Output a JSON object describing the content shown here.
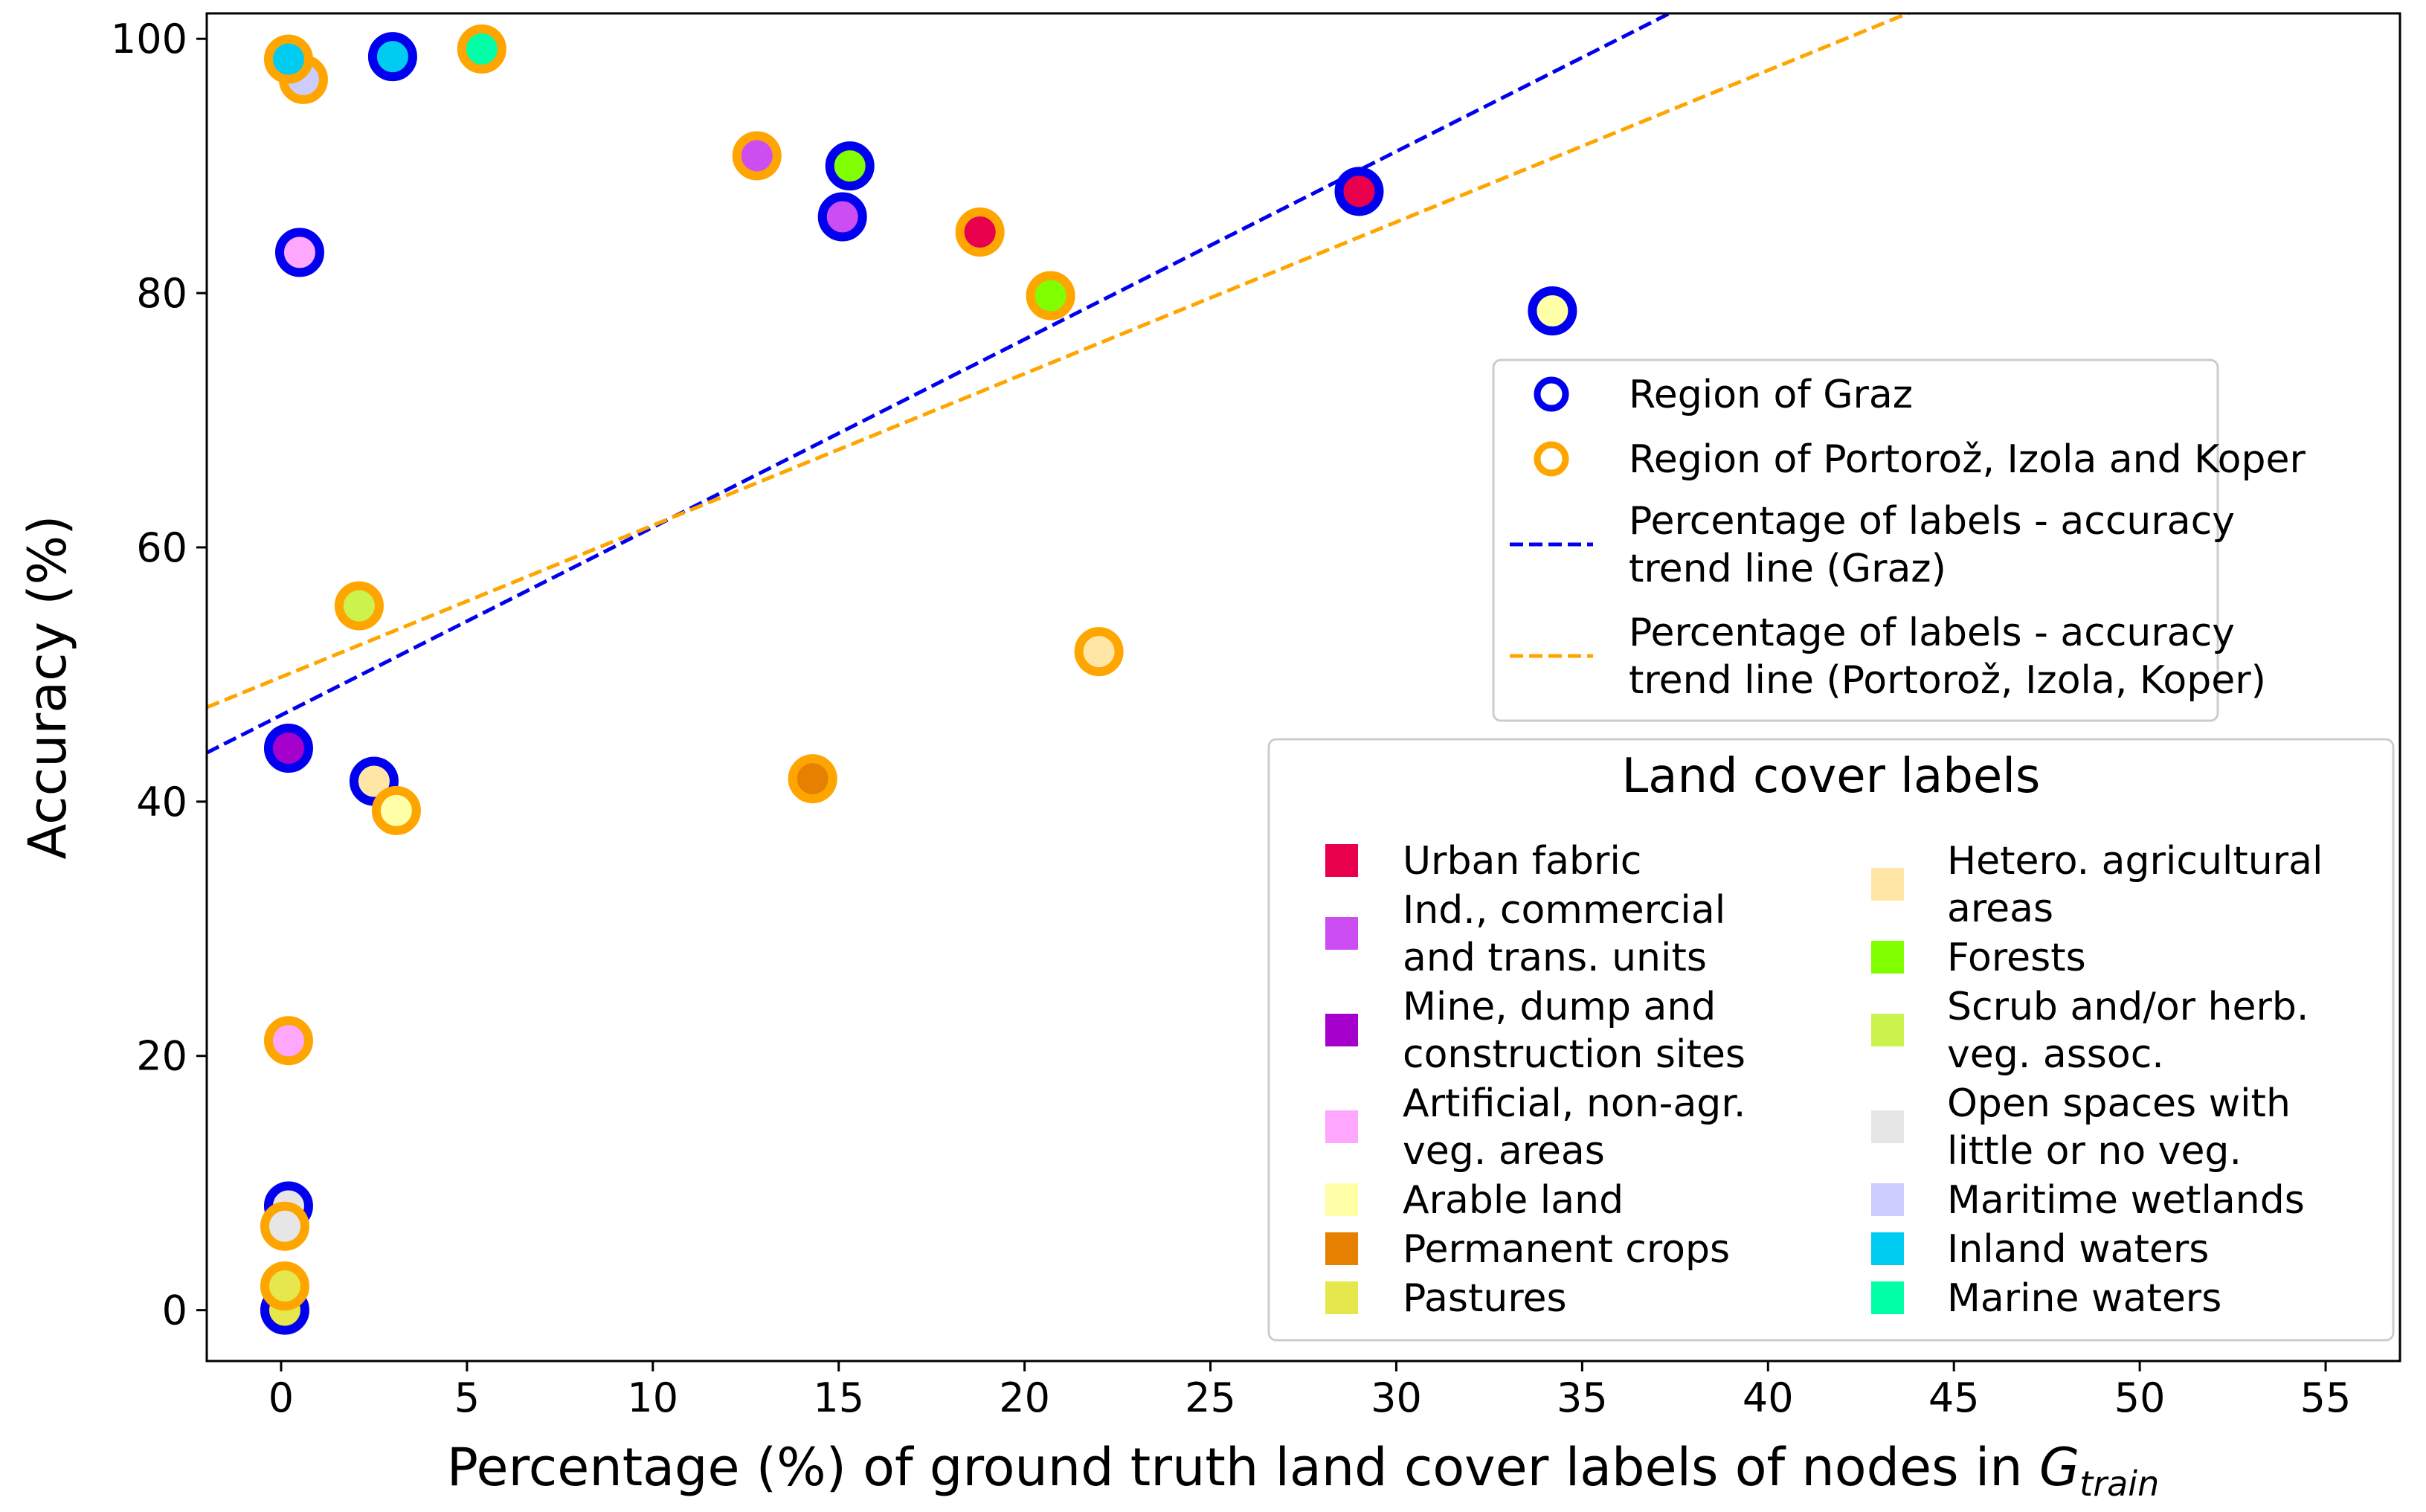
{
  "chart_data": {
    "type": "scatter",
    "title": "",
    "xlabel": "Percentage (%) of ground truth land cover labels of nodes in ",
    "xlabel_math": "G",
    "xlabel_sub": "train",
    "ylabel": "Accuracy (%)",
    "xlim": [
      -2,
      57
    ],
    "ylim": [
      -4,
      102
    ],
    "xticks": [
      0,
      5,
      10,
      15,
      20,
      25,
      30,
      35,
      40,
      45,
      50,
      55
    ],
    "yticks": [
      0,
      20,
      40,
      60,
      80,
      100
    ],
    "grid": false,
    "region_colors": {
      "graz": "#0000ee",
      "pik": "#ffa500"
    },
    "label_colors": {
      "urban": "#e8004c",
      "industrial": "#cc4df2",
      "mine": "#a600cc",
      "artificial": "#ffa6ff",
      "arable": "#ffffa8",
      "permanent": "#e68000",
      "pastures": "#e6e64d",
      "hetero": "#ffe6a6",
      "forests": "#80ff00",
      "scrub": "#ccf24d",
      "open": "#e6e6e6",
      "wetlands": "#ccccff",
      "inland": "#00ccf2",
      "marine": "#00ffa6"
    },
    "series": [
      {
        "name": "Region of Graz",
        "region": "graz",
        "points": [
          {
            "x": 29.0,
            "y": 88.0,
            "label": "urban"
          },
          {
            "x": 15.1,
            "y": 86.0,
            "label": "industrial"
          },
          {
            "x": 0.2,
            "y": 44.2,
            "label": "mine"
          },
          {
            "x": 0.5,
            "y": 83.2,
            "label": "artificial"
          },
          {
            "x": 34.2,
            "y": 78.6,
            "label": "arable"
          },
          {
            "x": 2.5,
            "y": 41.6,
            "label": "hetero"
          },
          {
            "x": 15.3,
            "y": 90.0,
            "label": "forests"
          },
          {
            "x": 0.2,
            "y": 8.2,
            "label": "open"
          },
          {
            "x": 0.1,
            "y": 0.0,
            "label": "pastures"
          },
          {
            "x": 3.0,
            "y": 98.6,
            "label": "inland"
          }
        ]
      },
      {
        "name": "Region of Portorož, Izola and Koper",
        "region": "pik",
        "points": [
          {
            "x": 18.8,
            "y": 84.8,
            "label": "urban"
          },
          {
            "x": 12.8,
            "y": 90.8,
            "label": "industrial"
          },
          {
            "x": 0.2,
            "y": 21.2,
            "label": "artificial"
          },
          {
            "x": 3.1,
            "y": 39.3,
            "label": "arable"
          },
          {
            "x": 14.3,
            "y": 41.8,
            "label": "permanent"
          },
          {
            "x": 0.1,
            "y": 1.9,
            "label": "pastures"
          },
          {
            "x": 22.0,
            "y": 51.8,
            "label": "hetero"
          },
          {
            "x": 20.7,
            "y": 79.8,
            "label": "forests"
          },
          {
            "x": 2.1,
            "y": 55.4,
            "label": "scrub"
          },
          {
            "x": 0.1,
            "y": 6.6,
            "label": "open"
          },
          {
            "x": 0.6,
            "y": 96.8,
            "label": "wetlands"
          },
          {
            "x": 0.2,
            "y": 98.4,
            "label": "inland"
          },
          {
            "x": 5.4,
            "y": 99.2,
            "label": "marine"
          }
        ]
      }
    ],
    "trend_lines": [
      {
        "name": "Percentage of labels - accuracy trend line (Graz)",
        "region": "graz",
        "intercept": 46.8,
        "slope": 1.478
      },
      {
        "name": "Percentage of labels - accuracy trend line (Portorož, Izola, Koper)",
        "region": "pik",
        "intercept": 49.8,
        "slope": 1.193
      }
    ],
    "legend_regions": {
      "placement": "right",
      "entries": [
        {
          "kind": "marker",
          "region": "graz",
          "lines": [
            "Region of Graz"
          ]
        },
        {
          "kind": "marker",
          "region": "pik",
          "lines": [
            "Region of Portorož, Izola and Koper"
          ]
        },
        {
          "kind": "line",
          "region": "graz",
          "lines": [
            "Percentage of labels - accuracy",
            "trend line (Graz)"
          ]
        },
        {
          "kind": "line",
          "region": "pik",
          "lines": [
            "Percentage of labels - accuracy",
            "trend line (Portorož, Izola, Koper)"
          ]
        }
      ]
    },
    "legend_labels": {
      "title": "Land cover labels",
      "placement": "lower-right",
      "columns": [
        [
          {
            "label": "urban",
            "lines": [
              "Urban fabric"
            ]
          },
          {
            "label": "industrial",
            "lines": [
              "Ind., commercial",
              "and trans. units"
            ]
          },
          {
            "label": "mine",
            "lines": [
              "Mine, dump and",
              "construction sites"
            ]
          },
          {
            "label": "artificial",
            "lines": [
              "Artificial, non-agr.",
              "veg. areas"
            ]
          },
          {
            "label": "arable",
            "lines": [
              "Arable land"
            ]
          },
          {
            "label": "permanent",
            "lines": [
              "Permanent crops"
            ]
          },
          {
            "label": "pastures",
            "lines": [
              "Pastures"
            ]
          }
        ],
        [
          {
            "label": "hetero",
            "lines": [
              "Hetero. agricultural",
              "areas"
            ]
          },
          {
            "label": "forests",
            "lines": [
              "Forests"
            ]
          },
          {
            "label": "scrub",
            "lines": [
              "Scrub and/or herb.",
              "veg. assoc."
            ]
          },
          {
            "label": "open",
            "lines": [
              "Open spaces with",
              "little or no veg."
            ]
          },
          {
            "label": "wetlands",
            "lines": [
              "Maritime wetlands"
            ]
          },
          {
            "label": "inland",
            "lines": [
              "Inland waters"
            ]
          },
          {
            "label": "marine",
            "lines": [
              "Marine waters"
            ]
          }
        ]
      ]
    }
  }
}
